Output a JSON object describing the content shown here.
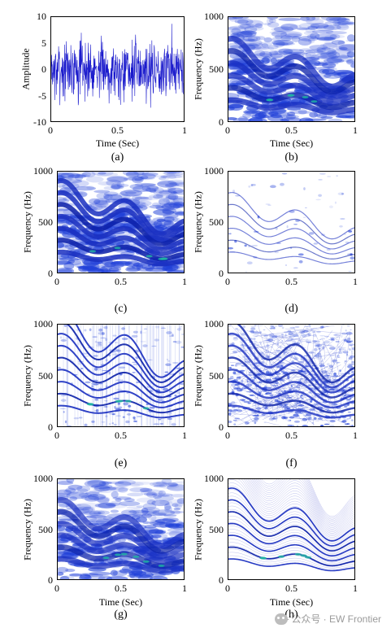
{
  "figure": {
    "watermark": "公众号 · EW Frontier"
  },
  "chart_data": [
    {
      "id": "a",
      "type": "line",
      "caption": "(a)",
      "xlabel": "Time (Sec)",
      "ylabel": "Amplitude",
      "xlim": [
        0,
        1
      ],
      "ylim": [
        -10,
        10
      ],
      "xticks": [
        "0",
        "0.5",
        "1"
      ],
      "yticks": [
        "10",
        "5",
        "0",
        "-5",
        "-10"
      ],
      "series_color": "#1a1acc",
      "description": "",
      "series": [
        {
          "values_summary": "noise-like signal, amplitude mostly within -5 to 5, peaks near ±9"
        }
      ]
    },
    {
      "id": "b",
      "type": "heatmap",
      "caption": "(b)",
      "xlabel": "Time (Sec)",
      "ylabel": "Frequency (Hz)",
      "xlim": [
        0,
        1
      ],
      "ylim": [
        0,
        1000
      ],
      "xticks": [
        "0",
        "0.5",
        "1"
      ],
      "yticks": [
        "1000",
        "500",
        "0"
      ],
      "colormap": [
        "#ffffff",
        "#1a3cd6",
        "#1fb5a8"
      ]
    },
    {
      "id": "c",
      "type": "heatmap",
      "caption": "(c)",
      "xlabel": "",
      "ylabel": "Frequency (Hz)",
      "xlim": [
        0,
        1
      ],
      "ylim": [
        0,
        1000
      ],
      "xticks": [
        "0",
        "0.5",
        "1"
      ],
      "yticks": [
        "1000",
        "500",
        "0"
      ]
    },
    {
      "id": "d",
      "type": "heatmap",
      "caption": "(d)",
      "xlabel": "",
      "ylabel": "Frequency (Hz)",
      "xlim": [
        0,
        1
      ],
      "ylim": [
        0,
        1000
      ],
      "xticks": [
        "0",
        "0.5",
        "1"
      ],
      "yticks": [
        "1000",
        "500",
        "0"
      ]
    },
    {
      "id": "e",
      "type": "heatmap",
      "caption": "(e)",
      "xlabel": "",
      "ylabel": "Frequency (Hz)",
      "xlim": [
        0,
        1
      ],
      "ylim": [
        0,
        1000
      ],
      "xticks": [
        "0",
        "0.5",
        "1"
      ],
      "yticks": [
        "1000",
        "500",
        "0"
      ]
    },
    {
      "id": "f",
      "type": "heatmap",
      "caption": "(f)",
      "xlabel": "",
      "ylabel": "Frequency (Hz)",
      "xlim": [
        0,
        1
      ],
      "ylim": [
        0,
        1000
      ],
      "xticks": [
        "0",
        "0.5",
        "1"
      ],
      "yticks": [
        "1000",
        "500",
        "0"
      ]
    },
    {
      "id": "g",
      "type": "heatmap",
      "caption": "(g)",
      "xlabel": "Time (Sec)",
      "ylabel": "Frequency (Hz)",
      "xlim": [
        0,
        1
      ],
      "ylim": [
        0,
        1000
      ],
      "xticks": [
        "0",
        "0.5",
        "1"
      ],
      "yticks": [
        "1000",
        "500",
        "0"
      ]
    },
    {
      "id": "h",
      "type": "heatmap",
      "caption": "(h)",
      "xlabel": "Time (Sec)",
      "ylabel": "Frequency (Hz)",
      "xlim": [
        0,
        1
      ],
      "ylim": [
        0,
        1000
      ],
      "xticks": [
        "0",
        "0.5",
        "1"
      ],
      "yticks": [
        "1000",
        "500",
        "0"
      ]
    }
  ]
}
